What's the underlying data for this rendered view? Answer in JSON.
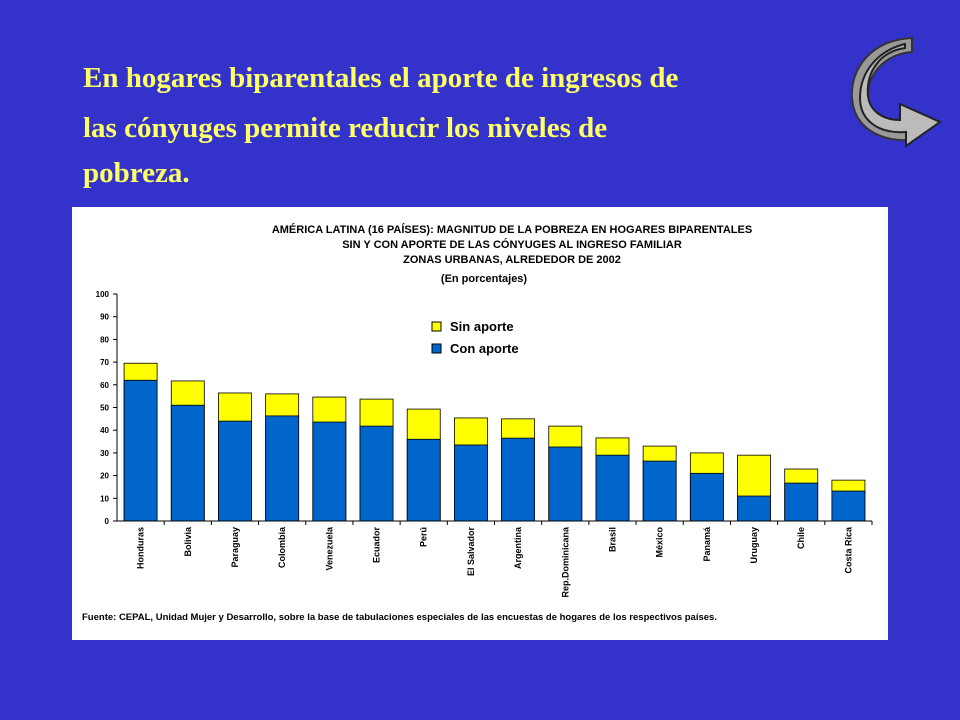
{
  "heading": [
    "En hogares biparentales el aporte de ingresos de",
    "las cónyuges permite reducir los niveles de",
    "pobreza."
  ],
  "chart_data": {
    "type": "bar",
    "mode": "overlap",
    "title": [
      "AMÉRICA LATINA (16 PAÍSES): MAGNITUD DE LA POBREZA EN HOGARES BIPARENTALES",
      "SIN Y CON APORTE DE LAS CÓNYUGES AL INGRESO FAMILIAR",
      "ZONAS URBANAS, ALREDEDOR DE 2002"
    ],
    "subtitle": "(En porcentajes)",
    "categories": [
      "Honduras",
      "Bolivia",
      "Paraguay",
      "Colombia",
      "Venezuela",
      "Ecuador",
      "Perú",
      "El Salvador",
      "Argentina",
      "Rep.Dominicana",
      "Brasil",
      "México",
      "Panamá",
      "Uruguay",
      "Chile",
      "Costa Rica"
    ],
    "series": [
      {
        "name": "Sin aporte",
        "color": "#ffff00",
        "values": [
          69.5,
          61.7,
          56.4,
          56,
          54.6,
          53.7,
          49.3,
          45.4,
          45,
          41.8,
          36.6,
          33,
          30,
          29,
          22.9,
          18
        ]
      },
      {
        "name": "Con aporte",
        "color": "#0066cc",
        "values": [
          62,
          51,
          44,
          46.3,
          43.6,
          41.8,
          36,
          33.5,
          36.5,
          32.6,
          29,
          26.4,
          21,
          11,
          16.7,
          13.2
        ]
      }
    ],
    "ylim": [
      0,
      100
    ],
    "yticks": [
      0,
      10,
      20,
      30,
      40,
      50,
      60,
      70,
      80,
      90,
      100
    ],
    "grid": false,
    "source": "Fuente: CEPAL, Unidad Mujer y Desarrollo, sobre la base de tabulaciones especiales de las encuestas de hogares de los respectivos países."
  }
}
